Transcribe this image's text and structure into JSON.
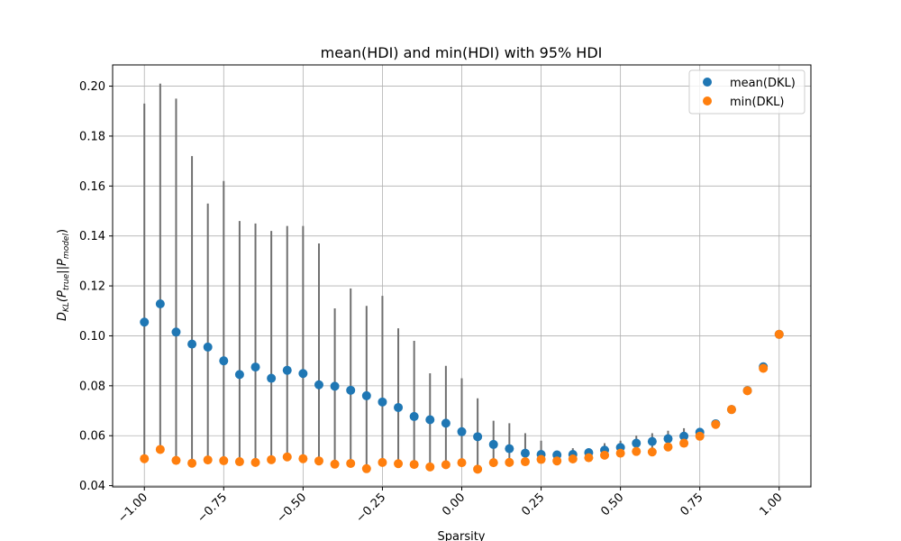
{
  "chart_data": {
    "type": "scatter",
    "title": "mean(HDI) and min(HDI) with 95% HDI",
    "xlabel": "Sparsity",
    "ylabel_main": "D",
    "ylabel_sub": "KL",
    "ylabel_rest": "(P",
    "ylabel_sub2": "true",
    "ylabel_mid": "||P",
    "ylabel_sub3": "model",
    "ylabel_end": ")",
    "xlim": [
      -1.1,
      1.1
    ],
    "ylim": [
      0.0395,
      0.2085
    ],
    "xticks": [
      -1.0,
      -0.75,
      -0.5,
      -0.25,
      0.0,
      0.25,
      0.5,
      0.75,
      1.0
    ],
    "xtick_labels": [
      "−1.00",
      "−0.75",
      "−0.50",
      "−0.25",
      "0.00",
      "0.25",
      "0.50",
      "0.75",
      "1.00"
    ],
    "yticks": [
      0.04,
      0.06,
      0.08,
      0.1,
      0.12,
      0.14,
      0.16,
      0.18,
      0.2
    ],
    "ytick_labels": [
      "0.04",
      "0.06",
      "0.08",
      "0.10",
      "0.12",
      "0.14",
      "0.16",
      "0.18",
      "0.20"
    ],
    "grid": true,
    "legend_position": "top-right",
    "x": [
      -1.0,
      -0.95,
      -0.9,
      -0.85,
      -0.8,
      -0.75,
      -0.7,
      -0.65,
      -0.6,
      -0.55,
      -0.5,
      -0.45,
      -0.4,
      -0.35,
      -0.3,
      -0.25,
      -0.2,
      -0.15,
      -0.1,
      -0.05,
      0.0,
      0.05,
      0.1,
      0.15,
      0.2,
      0.25,
      0.3,
      0.35,
      0.4,
      0.45,
      0.5,
      0.55,
      0.6,
      0.65,
      0.7,
      0.75,
      0.8,
      0.85,
      0.9,
      0.95,
      1.0
    ],
    "hdi_upper": [
      0.193,
      0.201,
      0.195,
      0.172,
      0.153,
      0.162,
      0.146,
      0.145,
      0.142,
      0.144,
      0.144,
      0.137,
      0.111,
      0.119,
      0.112,
      0.116,
      0.103,
      0.098,
      0.085,
      0.088,
      0.083,
      0.075,
      0.066,
      0.065,
      0.061,
      0.058,
      0.054,
      0.055,
      0.055,
      0.057,
      0.058,
      0.06,
      0.061,
      0.062,
      0.063,
      0.063,
      0.065,
      0.07,
      0.078,
      0.088,
      0.1005
    ],
    "series": [
      {
        "name": "mean(DKL)",
        "color": "#1f77b4",
        "values": [
          0.1055,
          0.1128,
          0.1015,
          0.0967,
          0.0955,
          0.09,
          0.0845,
          0.0875,
          0.083,
          0.0862,
          0.0849,
          0.0804,
          0.0798,
          0.0782,
          0.076,
          0.0735,
          0.0713,
          0.0677,
          0.0664,
          0.065,
          0.0616,
          0.0596,
          0.0565,
          0.0548,
          0.053,
          0.0525,
          0.0523,
          0.0525,
          0.0532,
          0.0542,
          0.0553,
          0.057,
          0.0577,
          0.0588,
          0.0598,
          0.0614,
          0.0648,
          0.0705,
          0.0781,
          0.0876,
          0.1006
        ]
      },
      {
        "name": "min(DKL)",
        "color": "#ff7f0e",
        "values": [
          0.0508,
          0.0545,
          0.0501,
          0.049,
          0.0503,
          0.05,
          0.0496,
          0.0493,
          0.0504,
          0.0515,
          0.0508,
          0.0499,
          0.0486,
          0.0489,
          0.0468,
          0.0493,
          0.0488,
          0.0485,
          0.0475,
          0.0484,
          0.0492,
          0.0466,
          0.0492,
          0.0493,
          0.0496,
          0.0505,
          0.0499,
          0.0507,
          0.0512,
          0.0522,
          0.053,
          0.0537,
          0.0535,
          0.0555,
          0.057,
          0.0598,
          0.0645,
          0.0705,
          0.078,
          0.087,
          0.1006
        ]
      }
    ]
  }
}
